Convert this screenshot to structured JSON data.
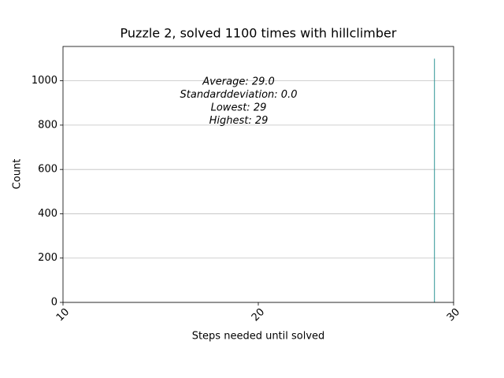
{
  "chart_data": {
    "type": "histogram",
    "title": "Puzzle 2, solved 1100 times with hillclimber",
    "x_label": "Steps needed until solved",
    "y_label": "Count",
    "bins": [
      29,
      29.04
    ],
    "counts": [
      1100
    ],
    "color": "#2e9595",
    "xlim": [
      10,
      30
    ],
    "xticks": [
      10,
      20,
      30
    ],
    "ylim": [
      0,
      1155
    ],
    "yticks": [
      0,
      200,
      400,
      600,
      800,
      1000
    ],
    "grid": "y",
    "annotations": [
      "Average: 29.0",
      "Standarddeviation: 0.0",
      "Lowest: 29",
      "Highest: 29"
    ]
  }
}
